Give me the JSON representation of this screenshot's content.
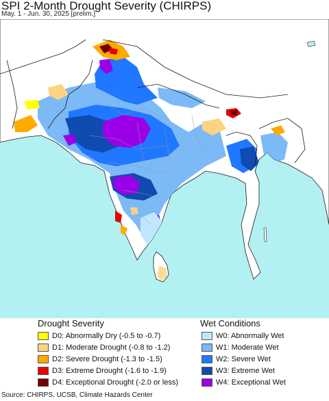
{
  "header": {
    "title": "SPI 2-Month Drought Severity (CHIRPS)",
    "subtitle": "May. 1 - Jun. 30, 2025 [prelim.]"
  },
  "legend": {
    "drought": {
      "title": "Drought Severity",
      "items": [
        {
          "code": "D0",
          "label": "D0: Abnormally Dry (-0.5 to -0.7)",
          "color": "#ffff00"
        },
        {
          "code": "D1",
          "label": "D1: Moderate Drought (-0.8 to -1.2)",
          "color": "#fcd37f"
        },
        {
          "code": "D2",
          "label": "D2: Severe Drought (-1.3 to -1.5)",
          "color": "#ffaa00"
        },
        {
          "code": "D3",
          "label": "D3: Extreme Drought (-1.6 to -1.9)",
          "color": "#e60000"
        },
        {
          "code": "D4",
          "label": "D4: Exceptional Drought (-2.0 or less)",
          "color": "#730000"
        }
      ]
    },
    "wet": {
      "title": "Wet Conditions",
      "items": [
        {
          "code": "W0",
          "label": "W0: Abnormally Wet",
          "color": "#bfe7ff"
        },
        {
          "code": "W1",
          "label": "W1: Moderate Wet",
          "color": "#7cb9f7"
        },
        {
          "code": "W2",
          "label": "W2: Severe Wet",
          "color": "#1f78ff"
        },
        {
          "code": "W3",
          "label": "W3: Extreme Wet",
          "color": "#0f4bb0"
        },
        {
          "code": "W4",
          "label": "W4: Exceptional Wet",
          "color": "#9b00e8"
        }
      ]
    }
  },
  "map": {
    "colors": {
      "ocean": "#b3f0f2",
      "land": "#ffffff",
      "border": "#1a1a1a",
      "state_border": "#9a9a9a"
    }
  },
  "footer": {
    "source": "Source: CHIRPS, UCSB, Climate Hazards Center"
  }
}
